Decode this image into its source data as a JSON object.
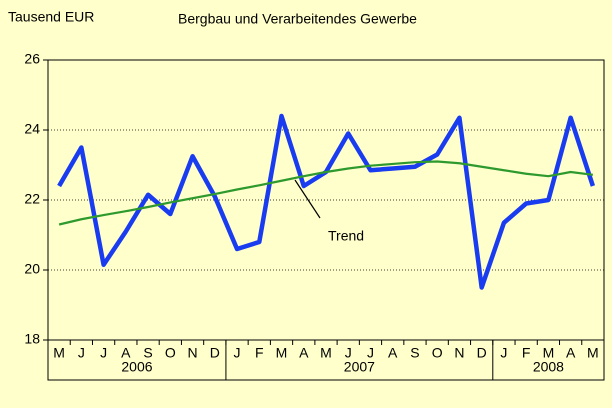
{
  "chart_data": {
    "type": "line",
    "title": "Bergbau und Verarbeitendes Gewerbe",
    "y_label": "Tausend EUR",
    "groups": [
      {
        "label": "2006",
        "categories": [
          "M",
          "J",
          "J",
          "A",
          "S",
          "O",
          "N",
          "D"
        ]
      },
      {
        "label": "2007",
        "categories": [
          "J",
          "F",
          "M",
          "A",
          "M",
          "J",
          "J",
          "A",
          "S",
          "O",
          "N",
          "D"
        ]
      },
      {
        "label": "2008",
        "categories": [
          "J",
          "F",
          "M",
          "A",
          "M"
        ]
      }
    ],
    "series": [
      {
        "color": "#1a3cf0",
        "values": [
          22.4,
          23.5,
          20.15,
          21.1,
          22.15,
          21.6,
          23.25,
          22.1,
          20.6,
          20.8,
          24.4,
          22.4,
          22.8,
          23.9,
          22.85,
          22.9,
          22.95,
          23.3,
          24.35,
          19.5,
          21.35,
          21.9,
          22.0,
          24.35,
          22.4
        ]
      },
      {
        "name": "Trend",
        "color": "#2e9a2e",
        "values": [
          21.3,
          21.45,
          21.57,
          21.68,
          21.8,
          21.93,
          22.05,
          22.17,
          22.3,
          22.42,
          22.55,
          22.68,
          22.8,
          22.9,
          22.98,
          23.03,
          23.08,
          23.1,
          23.05,
          22.95,
          22.85,
          22.75,
          22.68,
          22.8,
          22.72
        ]
      }
    ],
    "ylim": [
      18,
      26
    ],
    "yticks": [
      18,
      20,
      22,
      24,
      26
    ],
    "grid": true
  }
}
